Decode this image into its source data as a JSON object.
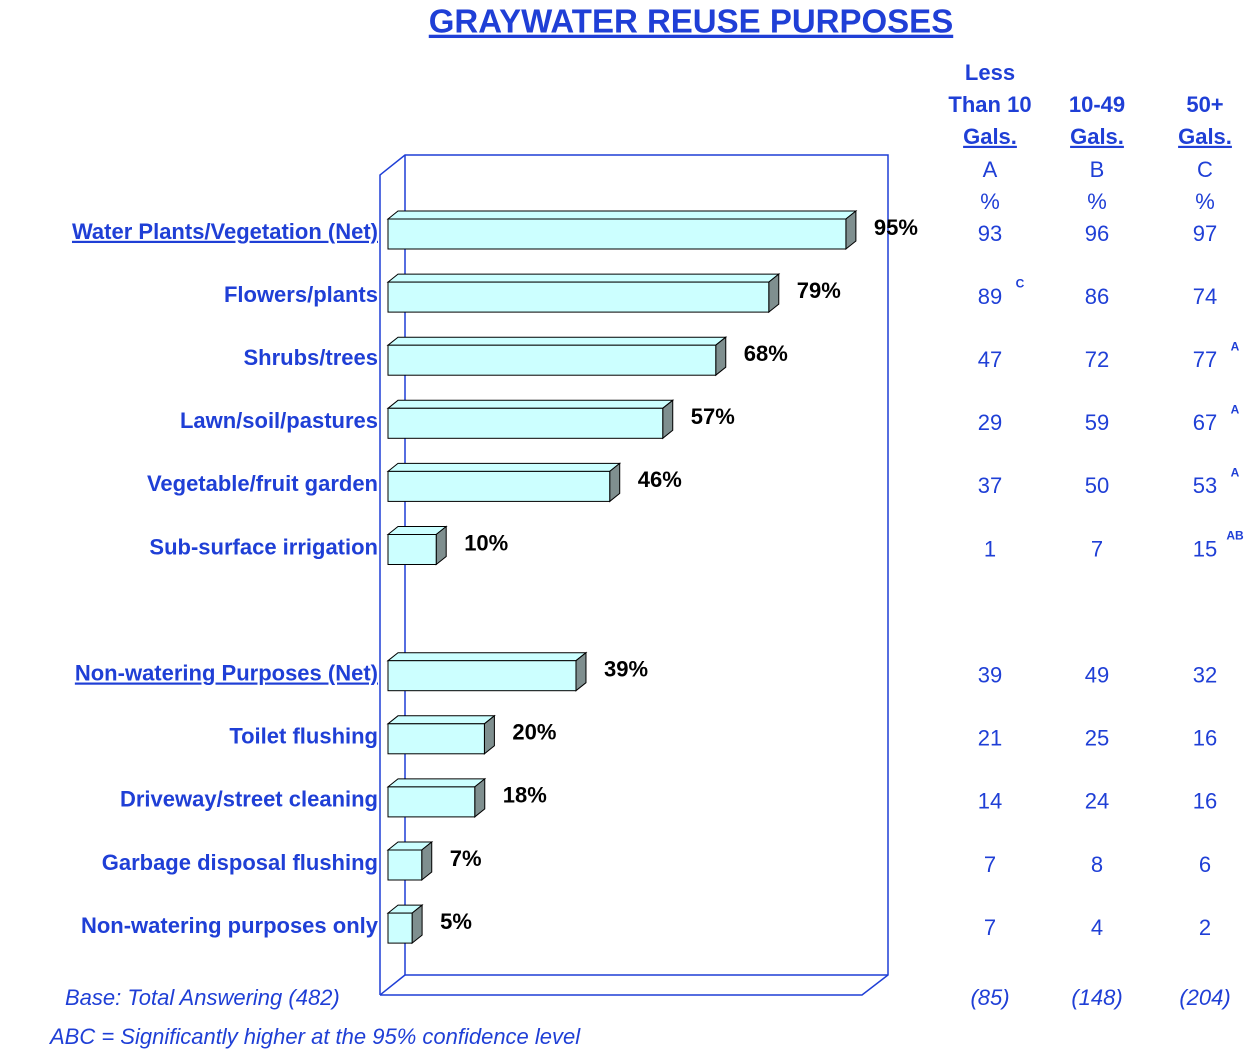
{
  "chart_data": {
    "type": "bar",
    "orientation": "horizontal",
    "title": "GRAYWATER REUSE PURPOSES",
    "categories": [
      "Water Plants/Vegetation (Net)",
      "Flowers/plants",
      "Shrubs/trees",
      "Lawn/soil/pastures",
      "Vegetable/fruit garden",
      "Sub-surface irrigation",
      null,
      "Non-watering Purposes (Net)",
      "Toilet flushing",
      "Driveway/street cleaning",
      "Garbage disposal flushing",
      "Non-watering purposes  only"
    ],
    "values": [
      95,
      79,
      68,
      57,
      46,
      10,
      null,
      39,
      20,
      18,
      7,
      5
    ],
    "value_labels": [
      "95%",
      "79%",
      "68%",
      "57%",
      "46%",
      "10%",
      null,
      "39%",
      "20%",
      "18%",
      "7%",
      "5%"
    ],
    "xlim": [
      0,
      100
    ],
    "color": "#ccffff",
    "side_color": "#7f8f8f",
    "label_color": "#1f3fd6",
    "columns": [
      {
        "header": [
          "Less",
          "Than 10",
          "Gals."
        ],
        "letter": "A",
        "unit": "%",
        "values": [
          93,
          89,
          47,
          29,
          37,
          1,
          null,
          39,
          21,
          14,
          7,
          7
        ],
        "significance": [
          null,
          "C",
          null,
          null,
          null,
          null,
          null,
          null,
          null,
          null,
          null,
          null
        ],
        "base": "(85)"
      },
      {
        "header": [
          "10-49",
          "Gals."
        ],
        "letter": "B",
        "unit": "%",
        "values": [
          96,
          86,
          72,
          59,
          50,
          7,
          null,
          49,
          25,
          24,
          8,
          4
        ],
        "significance": [
          null,
          null,
          null,
          null,
          null,
          null,
          null,
          null,
          null,
          null,
          null,
          null
        ],
        "base": "(148)"
      },
      {
        "header": [
          "50+",
          "Gals."
        ],
        "letter": "C",
        "unit": "%",
        "values": [
          97,
          74,
          77,
          67,
          53,
          15,
          null,
          32,
          16,
          16,
          6,
          2
        ],
        "significance": [
          null,
          null,
          "A",
          "A",
          "A",
          "AB",
          null,
          null,
          null,
          null,
          null,
          null
        ],
        "base": "(204)"
      }
    ],
    "footnotes": [
      "Base:  Total Answering (482)",
      "ABC = Significantly higher at the 95% confidence level"
    ]
  }
}
